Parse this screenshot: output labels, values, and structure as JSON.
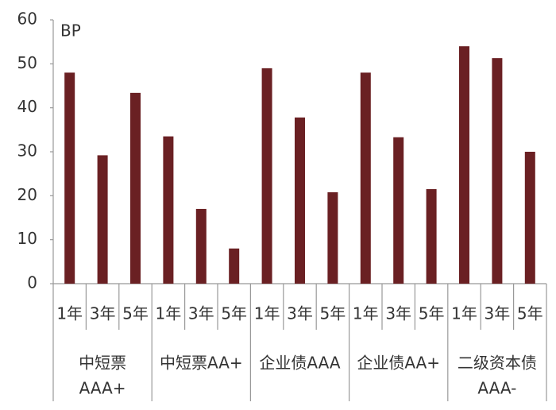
{
  "chart_data": {
    "type": "bar",
    "y_label": "BP",
    "color": "#6a2023",
    "categories": [
      "1年",
      "3年",
      "5年",
      "1年",
      "3年",
      "5年",
      "1年",
      "3年",
      "5年",
      "1年",
      "3年",
      "5年",
      "1年",
      "3年",
      "5年"
    ],
    "groups": [
      [
        "中短票",
        "AAA+"
      ],
      [
        "中短票AA+"
      ],
      [
        "企业债AAA"
      ],
      [
        "企业债AA+"
      ],
      [
        "二级资本债",
        "AAA-"
      ]
    ],
    "values": [
      48,
      29.2,
      43.4,
      33.5,
      17,
      8,
      49,
      37.8,
      20.8,
      48,
      33.3,
      21.5,
      54,
      51.3,
      30
    ],
    "ylim": [
      0,
      60
    ],
    "yticks": [
      0,
      10,
      20,
      30,
      40,
      50,
      60
    ],
    "grid": false
  }
}
